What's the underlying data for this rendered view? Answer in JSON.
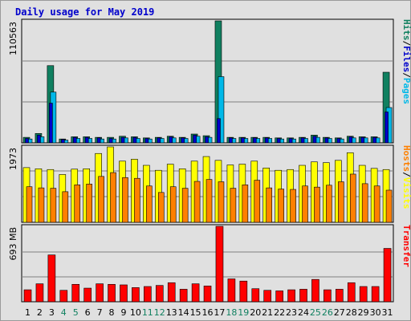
{
  "title": "Daily usage for May 2019",
  "colors": {
    "hits": "#108060",
    "files": "#0000cc",
    "pages": "#00b8e8",
    "hosts": "#ff8000",
    "visits": "#ffff00",
    "transfer": "#ff0000",
    "weekend_day": "#108060",
    "weekday": "#000000",
    "grid": "#808080",
    "panel_bg": "#e0e0e0"
  },
  "chart_data": [
    {
      "type": "bar",
      "panel": "hits-files-pages",
      "ymax_label": "110563",
      "ymax": 110563,
      "right_label": [
        {
          "text": "Hits",
          "color": "#108060"
        },
        {
          "text": "/",
          "color": "#000000"
        },
        {
          "text": "Files",
          "color": "#0000cc"
        },
        {
          "text": "/",
          "color": "#000000"
        },
        {
          "text": "Pages",
          "color": "#00b8e8"
        }
      ],
      "categories": [
        "1",
        "2",
        "3",
        "4",
        "5",
        "6",
        "7",
        "8",
        "9",
        "10",
        "11",
        "12",
        "13",
        "14",
        "15",
        "16",
        "17",
        "18",
        "19",
        "20",
        "21",
        "22",
        "23",
        "24",
        "25",
        "26",
        "27",
        "28",
        "29",
        "30",
        "31"
      ],
      "weekend_days": [
        4,
        5,
        11,
        12,
        18,
        19,
        25,
        26
      ],
      "series": [
        {
          "name": "Hits",
          "values": [
            5000,
            8500,
            70000,
            3500,
            5500,
            5500,
            5000,
            5000,
            6000,
            5500,
            4500,
            5000,
            6000,
            5000,
            8000,
            6500,
            110563,
            5000,
            5000,
            5000,
            5000,
            4500,
            4500,
            5000,
            7000,
            5000,
            4500,
            6000,
            5500,
            5500,
            64000
          ]
        },
        {
          "name": "Files",
          "values": [
            4000,
            7000,
            36000,
            3000,
            5000,
            5000,
            4500,
            4000,
            5000,
            5000,
            4000,
            4500,
            5500,
            4500,
            7000,
            5500,
            22000,
            4500,
            4500,
            4500,
            4500,
            4000,
            4000,
            4500,
            6000,
            4500,
            4000,
            5500,
            5000,
            5000,
            28000
          ]
        },
        {
          "name": "Pages",
          "values": [
            3500,
            5500,
            46000,
            2500,
            4000,
            4000,
            3500,
            3500,
            4500,
            4000,
            3500,
            4000,
            4500,
            4000,
            6000,
            5000,
            60000,
            4000,
            4000,
            4000,
            4000,
            3500,
            3500,
            4000,
            5000,
            4000,
            3500,
            4500,
            4500,
            4500,
            32000
          ]
        }
      ]
    },
    {
      "type": "bar",
      "panel": "hosts-visits",
      "ymax_label": "1973",
      "ymax": 1973,
      "right_label": [
        {
          "text": "Hosts",
          "color": "#ff8000"
        },
        {
          "text": "/",
          "color": "#000000"
        },
        {
          "text": "Visits",
          "color": "#ffff00"
        }
      ],
      "categories": [
        "1",
        "2",
        "3",
        "4",
        "5",
        "6",
        "7",
        "8",
        "9",
        "10",
        "11",
        "12",
        "13",
        "14",
        "15",
        "16",
        "17",
        "18",
        "19",
        "20",
        "21",
        "22",
        "23",
        "24",
        "25",
        "26",
        "27",
        "28",
        "29",
        "30",
        "31"
      ],
      "series": [
        {
          "name": "Visits",
          "values": [
            1430,
            1400,
            1380,
            1250,
            1390,
            1400,
            1800,
            1973,
            1600,
            1650,
            1490,
            1360,
            1520,
            1400,
            1600,
            1720,
            1620,
            1500,
            1520,
            1600,
            1420,
            1360,
            1380,
            1490,
            1580,
            1560,
            1620,
            1820,
            1490,
            1410,
            1380
          ]
        },
        {
          "name": "Hosts",
          "values": [
            930,
            900,
            890,
            800,
            980,
            1000,
            1200,
            1300,
            1170,
            1150,
            950,
            780,
            930,
            890,
            1070,
            1120,
            1060,
            890,
            980,
            1100,
            900,
            870,
            860,
            950,
            920,
            970,
            1060,
            1260,
            1010,
            950,
            840
          ]
        }
      ]
    },
    {
      "type": "bar",
      "panel": "transfer",
      "ymax_label": "693 MB",
      "ymax": 693,
      "unit": "MB",
      "right_label": [
        {
          "text": "Transfer",
          "color": "#ff0000"
        }
      ],
      "categories": [
        "1",
        "2",
        "3",
        "4",
        "5",
        "6",
        "7",
        "8",
        "9",
        "10",
        "11",
        "12",
        "13",
        "14",
        "15",
        "16",
        "17",
        "18",
        "19",
        "20",
        "21",
        "22",
        "23",
        "24",
        "25",
        "26",
        "27",
        "28",
        "29",
        "30",
        "31"
      ],
      "series": [
        {
          "name": "Transfer",
          "values": [
            110,
            165,
            430,
            105,
            160,
            125,
            165,
            160,
            155,
            130,
            140,
            150,
            175,
            115,
            165,
            145,
            693,
            210,
            190,
            120,
            105,
            100,
            110,
            115,
            205,
            110,
            115,
            175,
            140,
            140,
            490
          ]
        }
      ]
    }
  ]
}
